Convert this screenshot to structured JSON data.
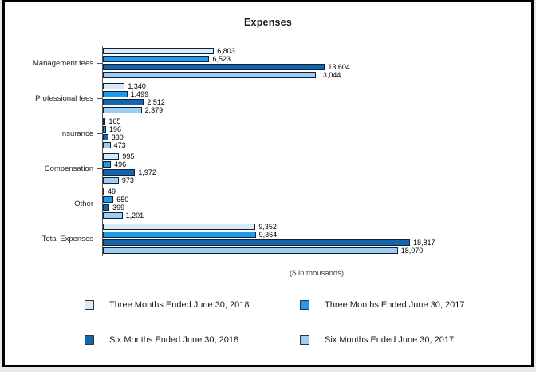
{
  "title": "Expenses",
  "caption": "($ in thousands)",
  "colors": {
    "three_months_2018": "#D9EAF7",
    "three_months_2017": "#1B9AF0",
    "six_months_2018": "#1565AC",
    "six_months_2017": "#9FCDF2",
    "bar_border": "#0d2235",
    "axis_line": "#595959",
    "frame_border": "#000000"
  },
  "chart_data": {
    "type": "bar",
    "orientation": "horizontal",
    "title": "Expenses",
    "xlabel": "($ in thousands)",
    "categories": [
      "Management fees",
      "Professional fees",
      "Insurance",
      "Compensation",
      "Other",
      "Total Expenses"
    ],
    "series": [
      {
        "name": "Three Months Ended June 30, 2018",
        "color": "#D9EAF7",
        "values": [
          6803,
          1340,
          165,
          995,
          49,
          9352
        ]
      },
      {
        "name": "Three Months Ended June 30, 2017",
        "color": "#1B9AF0",
        "values": [
          6523,
          1499,
          196,
          496,
          650,
          9364
        ]
      },
      {
        "name": "Six Months Ended June 30, 2018",
        "color": "#1565AC",
        "values": [
          13604,
          2512,
          330,
          1972,
          399,
          18817
        ]
      },
      {
        "name": "Six Months Ended June 30, 2017",
        "color": "#9FCDF2",
        "values": [
          13044,
          2379,
          473,
          973,
          1201,
          18070
        ]
      }
    ],
    "value_labels": true,
    "xlim": [
      0,
      20000
    ],
    "grid": false,
    "legend_position": "bottom",
    "legend_columns": 2
  }
}
